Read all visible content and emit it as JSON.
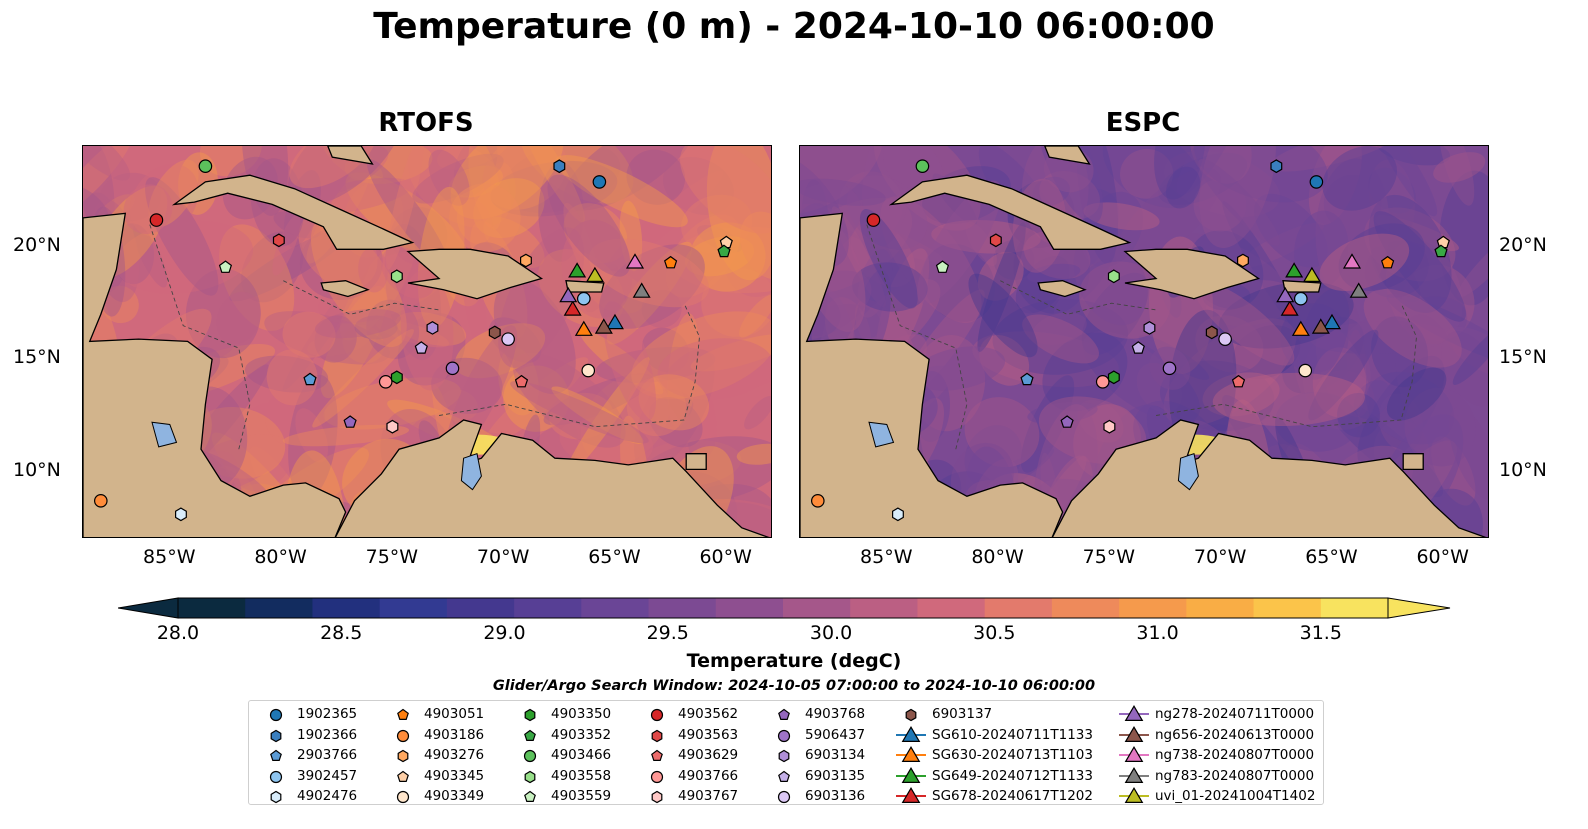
{
  "title": "Temperature (0 m) - 2024-10-10 06:00:00",
  "panels": [
    {
      "title": "RTOFS",
      "palette_bias": 0.62
    },
    {
      "title": "ESPC",
      "palette_bias": 0.42
    }
  ],
  "axes": {
    "lon_ticks": [
      "85°W",
      "80°W",
      "75°W",
      "70°W",
      "65°W",
      "60°W"
    ],
    "lat_ticks": [
      "20°N",
      "15°N",
      "10°N"
    ],
    "lon_range": [
      -89,
      -58
    ],
    "lat_range": [
      7,
      24.5
    ]
  },
  "colorbar": {
    "label": "Temperature (degC)",
    "ticks": [
      "28.0",
      "28.5",
      "29.0",
      "29.5",
      "30.0",
      "30.5",
      "31.0",
      "31.5"
    ],
    "range": [
      28.0,
      31.5
    ],
    "colors": [
      "#0b2a3f",
      "#122c5f",
      "#22307e",
      "#323a92",
      "#44388f",
      "#573f95",
      "#6a4596",
      "#7c4a93",
      "#8e4f90",
      "#a5578a",
      "#bb5f83",
      "#d0697c",
      "#e37a6c",
      "#ee8a5b",
      "#f59a4c",
      "#f9ad45",
      "#fbc44a",
      "#f8e35f"
    ]
  },
  "land_color": "#d2b48c",
  "search_window": "Glider/Argo Search Window: 2024-10-05 07:00:00 to 2024-10-10 06:00:00",
  "observations": [
    {
      "id": "1902365",
      "marker": "circle",
      "color": "#1f77b4",
      "lon": -65.8,
      "lat": 22.9
    },
    {
      "id": "1902366",
      "marker": "hexagon",
      "color": "#3a7fbf",
      "lon": -67.6,
      "lat": 23.6
    },
    {
      "id": "2903766",
      "marker": "pentagon",
      "color": "#5b9bd5",
      "lon": -78.8,
      "lat": 14.1
    },
    {
      "id": "3902457",
      "marker": "circle",
      "color": "#8ec5f0",
      "lon": -66.5,
      "lat": 17.7
    },
    {
      "id": "4902476",
      "marker": "hexagon",
      "color": "#d8ecfa",
      "lon": -84.6,
      "lat": 8.1
    },
    {
      "id": "4903051",
      "marker": "pentagon",
      "color": "#ff7f0e",
      "lon": -62.6,
      "lat": 19.3
    },
    {
      "id": "4903186",
      "marker": "circle",
      "color": "#ff8c3a",
      "lon": -88.2,
      "lat": 8.7
    },
    {
      "id": "4903276",
      "marker": "hexagon",
      "color": "#ffa860",
      "lon": -69.1,
      "lat": 19.4
    },
    {
      "id": "4903345",
      "marker": "pentagon",
      "color": "#ffd0a8",
      "lon": -60.1,
      "lat": 20.2
    },
    {
      "id": "4903349",
      "marker": "circle",
      "color": "#ffe6cc",
      "lon": -66.3,
      "lat": 14.5
    },
    {
      "id": "4903350",
      "marker": "hexagon",
      "color": "#2ca02c",
      "lon": -74.9,
      "lat": 14.2
    },
    {
      "id": "4903352",
      "marker": "pentagon",
      "color": "#39a845",
      "lon": -60.2,
      "lat": 19.8
    },
    {
      "id": "4903466",
      "marker": "circle",
      "color": "#5cc15c",
      "lon": -83.5,
      "lat": 23.6
    },
    {
      "id": "4903558",
      "marker": "hexagon",
      "color": "#98df8a",
      "lon": -74.9,
      "lat": 18.7
    },
    {
      "id": "4903559",
      "marker": "pentagon",
      "color": "#c8f0c0",
      "lon": -82.6,
      "lat": 19.1
    },
    {
      "id": "4903562",
      "marker": "circle",
      "color": "#d62728",
      "lon": -85.7,
      "lat": 21.2
    },
    {
      "id": "4903563",
      "marker": "hexagon",
      "color": "#e04848",
      "lon": -80.2,
      "lat": 20.3
    },
    {
      "id": "4903629",
      "marker": "pentagon",
      "color": "#ec6b6b",
      "lon": -69.3,
      "lat": 14.0
    },
    {
      "id": "4903766",
      "marker": "circle",
      "color": "#ff9896",
      "lon": -75.4,
      "lat": 14.0
    },
    {
      "id": "4903767",
      "marker": "hexagon",
      "color": "#ffc8c6",
      "lon": -75.1,
      "lat": 12.0
    },
    {
      "id": "4903768",
      "marker": "pentagon",
      "color": "#9467bd",
      "lon": -77.0,
      "lat": 12.2
    },
    {
      "id": "5906437",
      "marker": "circle",
      "color": "#9f74c8",
      "lon": -72.4,
      "lat": 14.6
    },
    {
      "id": "6903134",
      "marker": "hexagon",
      "color": "#b08fd8",
      "lon": -73.3,
      "lat": 16.4
    },
    {
      "id": "6903135",
      "marker": "pentagon",
      "color": "#c5b0e8",
      "lon": -73.8,
      "lat": 15.5
    },
    {
      "id": "6903136",
      "marker": "circle",
      "color": "#dcc8f5",
      "lon": -69.9,
      "lat": 15.9
    },
    {
      "id": "6903137",
      "marker": "hexagon",
      "color": "#8c564b",
      "lon": -70.5,
      "lat": 16.2
    },
    {
      "id": "SG610-20240711T1133",
      "marker": "triangle",
      "color": "#1f77b4",
      "lon": -65.1,
      "lat": 16.6,
      "line": true
    },
    {
      "id": "SG630-20240713T1103",
      "marker": "triangle",
      "color": "#ff7f0e",
      "lon": -66.5,
      "lat": 16.3,
      "line": true
    },
    {
      "id": "SG649-20240712T1133",
      "marker": "triangle",
      "color": "#2ca02c",
      "lon": -66.8,
      "lat": 18.9,
      "line": true
    },
    {
      "id": "SG678-20240617T1202",
      "marker": "triangle",
      "color": "#d62728",
      "lon": -67.0,
      "lat": 17.2,
      "line": true
    },
    {
      "id": "ng278-20240711T0000",
      "marker": "triangle",
      "color": "#9467bd",
      "lon": -67.2,
      "lat": 17.8,
      "line": true
    },
    {
      "id": "ng656-20240613T0000",
      "marker": "triangle",
      "color": "#8c564b",
      "lon": -65.6,
      "lat": 16.4,
      "line": true
    },
    {
      "id": "ng738-20240807T0000",
      "marker": "triangle",
      "color": "#e377c2",
      "lon": -64.2,
      "lat": 19.3,
      "line": true
    },
    {
      "id": "ng783-20240807T0000",
      "marker": "triangle",
      "color": "#7f7f7f",
      "lon": -63.9,
      "lat": 18.0,
      "line": true
    },
    {
      "id": "uvi_01-20241004T1402",
      "marker": "triangle",
      "color": "#bcbd22",
      "lon": -66.0,
      "lat": 18.7,
      "line": true
    }
  ]
}
